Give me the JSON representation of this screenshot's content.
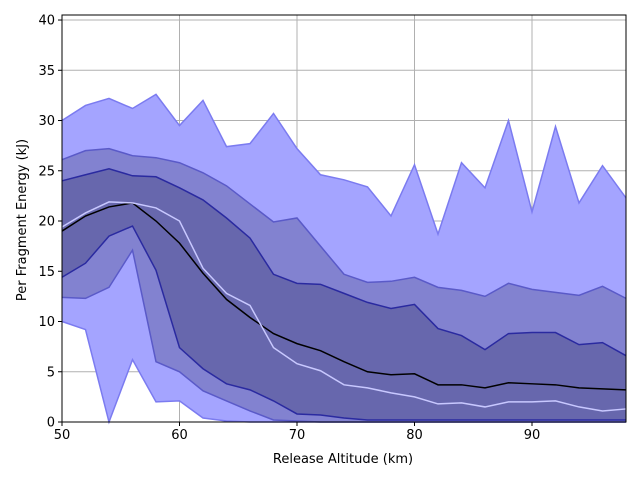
{
  "chart_data": {
    "type": "area",
    "title": "",
    "xlabel": "Release Altitude (km)",
    "ylabel": "Per Fragment Energy (kJ)",
    "xlim": [
      50,
      98
    ],
    "ylim": [
      0,
      40.5
    ],
    "xticks": [
      50,
      60,
      70,
      80,
      90
    ],
    "yticks": [
      0,
      5,
      10,
      15,
      20,
      25,
      30,
      35,
      40
    ],
    "grid": true,
    "legend": "none",
    "x": [
      50,
      52,
      54,
      56,
      58,
      60,
      62,
      64,
      66,
      68,
      70,
      72,
      74,
      76,
      78,
      80,
      82,
      84,
      86,
      88,
      90,
      92,
      94,
      96,
      98
    ],
    "bands": [
      {
        "level": "outer",
        "fill": "#a4a4ff",
        "edge": "#7b7bf0",
        "lower": [
          10.0,
          9.2,
          0.0,
          6.2,
          2.0,
          2.1,
          0.4,
          0.1,
          0.0,
          0.0,
          0.0,
          0.0,
          0.0,
          0.0,
          0.0,
          0.0,
          0.0,
          0.0,
          0.0,
          0.0,
          0.0,
          0.0,
          0.0,
          0.0,
          0.0
        ],
        "upper": [
          30.0,
          31.5,
          32.2,
          31.2,
          32.6,
          29.5,
          32.0,
          27.4,
          27.7,
          30.7,
          27.2,
          24.6,
          24.1,
          23.4,
          20.5,
          25.6,
          18.7,
          25.8,
          23.3,
          30.0,
          20.9,
          29.4,
          21.8,
          25.5,
          22.3
        ]
      },
      {
        "level": "middle",
        "fill": "#8282d0",
        "edge": "#5a5ac8",
        "lower": [
          12.4,
          12.3,
          13.4,
          17.1,
          6.0,
          5.0,
          3.1,
          2.1,
          1.1,
          0.2,
          0.1,
          0.0,
          0.0,
          0.0,
          0.0,
          0.0,
          0.0,
          0.0,
          0.0,
          0.0,
          0.0,
          0.0,
          0.0,
          0.0,
          0.0
        ],
        "upper": [
          26.1,
          27.0,
          27.2,
          26.5,
          26.3,
          25.8,
          24.8,
          23.5,
          21.7,
          19.9,
          20.3,
          17.5,
          14.7,
          13.9,
          14.0,
          14.4,
          13.4,
          13.1,
          12.5,
          13.8,
          13.2,
          12.9,
          12.6,
          13.5,
          12.3
        ]
      },
      {
        "level": "inner",
        "fill": "#6767ad",
        "edge": "#2a2aa0",
        "lower": [
          14.4,
          15.8,
          18.5,
          19.5,
          15.1,
          7.4,
          5.3,
          3.8,
          3.2,
          2.1,
          0.8,
          0.7,
          0.4,
          0.2,
          0.2,
          0.2,
          0.2,
          0.2,
          0.2,
          0.2,
          0.2,
          0.2,
          0.2,
          0.2,
          0.2
        ],
        "upper": [
          24.0,
          24.6,
          25.2,
          24.5,
          24.4,
          23.3,
          22.1,
          20.3,
          18.3,
          14.7,
          13.8,
          13.7,
          12.8,
          11.9,
          11.3,
          11.7,
          9.3,
          8.6,
          7.2,
          8.8,
          8.9,
          8.9,
          7.7,
          7.9,
          6.6
        ]
      }
    ],
    "series": [
      {
        "stroke": "#000000",
        "values": [
          19.0,
          20.5,
          21.4,
          21.8,
          20.0,
          17.8,
          14.8,
          12.2,
          10.4,
          8.8,
          7.8,
          7.1,
          6.0,
          5.0,
          4.7,
          4.8,
          3.7,
          3.7,
          3.4,
          3.9,
          3.8,
          3.7,
          3.4,
          3.3,
          3.2
        ]
      },
      {
        "stroke": "#c8c8ff",
        "values": [
          19.4,
          20.8,
          21.9,
          21.8,
          21.3,
          20.0,
          15.3,
          12.8,
          11.6,
          7.4,
          5.8,
          5.1,
          3.7,
          3.4,
          2.9,
          2.5,
          1.8,
          1.9,
          1.5,
          2.0,
          2.0,
          2.1,
          1.5,
          1.1,
          1.3
        ]
      }
    ],
    "colors": {
      "grid": "#b0b0b0",
      "axes": "#000000",
      "background": "#ffffff"
    }
  }
}
